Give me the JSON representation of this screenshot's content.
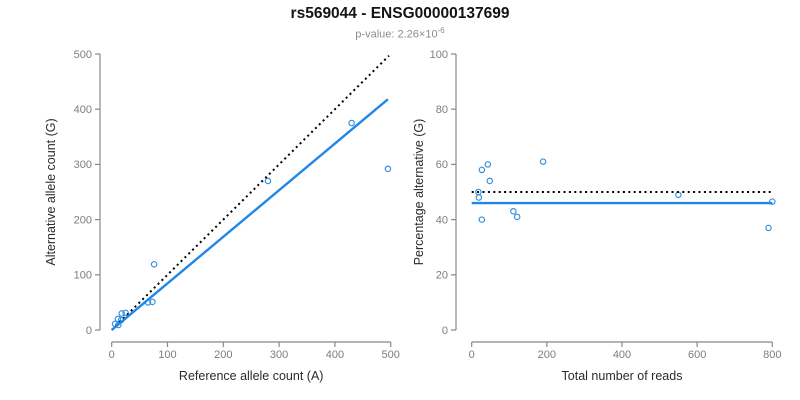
{
  "header": {
    "title": "rs569044 - ENSG00000137699",
    "pvalue_prefix": "p-value: 2.26×10",
    "pvalue_exponent": "-6"
  },
  "colors": {
    "title": "#141414",
    "subtitle": "#8c8c8c",
    "axis_line": "#888888",
    "tick_label": "#7d7d7d",
    "axis_title": "#2b2b2b",
    "point": "#3390e0",
    "fit_line": "#1f87e8",
    "reference_line": "#000000"
  },
  "chart_data": [
    {
      "type": "scatter",
      "panel": "left",
      "xlabel": "Reference allele count (A)",
      "ylabel": "Alternative allele count (G)",
      "xlim": [
        0,
        500
      ],
      "ylim": [
        0,
        500
      ],
      "xticks": [
        0,
        100,
        200,
        300,
        400,
        500
      ],
      "yticks": [
        0,
        100,
        200,
        300,
        400,
        500
      ],
      "grid": false,
      "legend": "none",
      "points": [
        [
          6,
          11
        ],
        [
          12,
          9
        ],
        [
          11,
          20
        ],
        [
          17,
          18
        ],
        [
          18,
          30
        ],
        [
          25,
          31
        ],
        [
          65,
          50
        ],
        [
          73,
          51
        ],
        [
          76,
          119
        ],
        [
          280,
          270
        ],
        [
          430,
          375
        ],
        [
          495,
          292
        ]
      ],
      "lines": [
        {
          "name": "expected-1to1-line",
          "style": "dotted",
          "color_key": "reference_line",
          "x1": 0,
          "y1": 0,
          "x2": 497,
          "y2": 497
        },
        {
          "name": "fitted-regression-line",
          "style": "solid",
          "color_key": "fit_line",
          "x1": 0,
          "y1": 0,
          "x2": 495,
          "y2": 418
        }
      ]
    },
    {
      "type": "scatter",
      "panel": "right",
      "xlabel": "Total number of reads",
      "ylabel": "Percentage alternative (G)",
      "xlim": [
        0,
        800
      ],
      "ylim": [
        0,
        100
      ],
      "xticks": [
        0,
        200,
        400,
        600,
        800
      ],
      "yticks": [
        0,
        20,
        40,
        60,
        80,
        100
      ],
      "grid": false,
      "legend": "none",
      "points": [
        [
          18,
          50
        ],
        [
          19,
          48
        ],
        [
          27,
          40
        ],
        [
          27,
          58
        ],
        [
          43,
          60
        ],
        [
          48,
          54
        ],
        [
          111,
          43
        ],
        [
          121,
          41
        ],
        [
          190,
          61
        ],
        [
          550,
          49
        ],
        [
          790,
          37
        ],
        [
          800,
          46.5
        ]
      ],
      "lines": [
        {
          "name": "expected-50pct-line",
          "style": "dotted",
          "color_key": "reference_line",
          "x1": 0,
          "y1": 50,
          "x2": 800,
          "y2": 50
        },
        {
          "name": "fitted-mean-line",
          "style": "solid",
          "color_key": "fit_line",
          "x1": 0,
          "y1": 46,
          "x2": 800,
          "y2": 46
        }
      ]
    }
  ]
}
